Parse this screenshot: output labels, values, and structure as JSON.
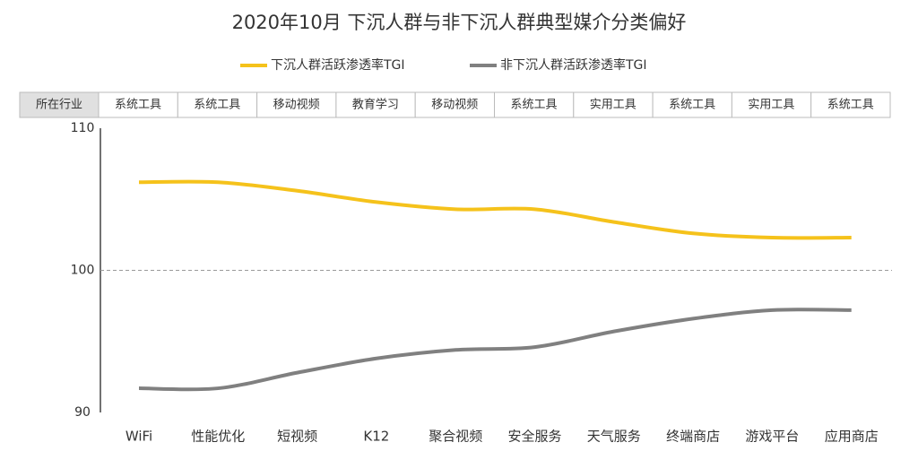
{
  "chart_data": {
    "type": "line",
    "title": "2020年10月 下沉人群与非下沉人群典型媒介分类偏好",
    "industry_label": "所在行业",
    "industries": [
      "系统工具",
      "系统工具",
      "移动视频",
      "教育学习",
      "移动视频",
      "系统工具",
      "实用工具",
      "系统工具",
      "实用工具",
      "系统工具"
    ],
    "categories": [
      "WiFi",
      "性能优化",
      "短视频",
      "K12",
      "聚合视频",
      "安全服务",
      "天气服务",
      "终端商店",
      "游戏平台",
      "应用商店"
    ],
    "series": [
      {
        "name": "下沉人群活跃渗透率TGI",
        "color": "#f5c21b",
        "values": [
          106.2,
          106.2,
          105.6,
          104.8,
          104.3,
          104.3,
          103.4,
          102.6,
          102.3,
          102.3
        ]
      },
      {
        "name": "非下沉人群活跃渗透率TGI",
        "color": "#808080",
        "values": [
          91.7,
          91.7,
          92.8,
          93.8,
          94.4,
          94.6,
          95.7,
          96.6,
          97.2,
          97.2
        ]
      }
    ],
    "ylim": [
      90,
      110
    ],
    "yticks": [
      90,
      100,
      110
    ],
    "reference_line": 100
  }
}
